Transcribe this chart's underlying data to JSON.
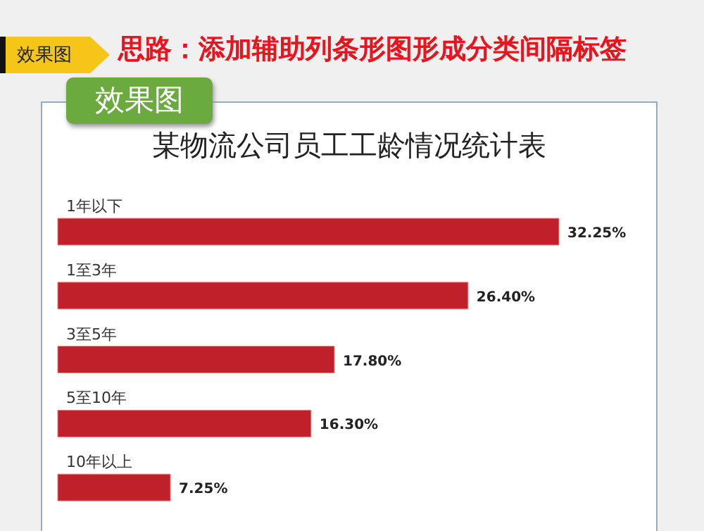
{
  "chart_data": {
    "type": "bar",
    "orientation": "horizontal",
    "title": "某物流公司员工工龄情况统计表",
    "annotations": [
      "效果图",
      "思路：添加辅助列条形图形成分类间隔标签",
      "效果图"
    ],
    "categories": [
      "1年以下",
      "1至3年",
      "3至5年",
      "5至10年",
      "10年以上"
    ],
    "values": [
      32.25,
      26.4,
      17.8,
      16.3,
      7.25
    ],
    "value_labels": [
      "32.25%",
      "26.40%",
      "17.80%",
      "16.30%",
      "7.25%"
    ],
    "color": "#c0202a",
    "grid": false,
    "legend": false
  }
}
